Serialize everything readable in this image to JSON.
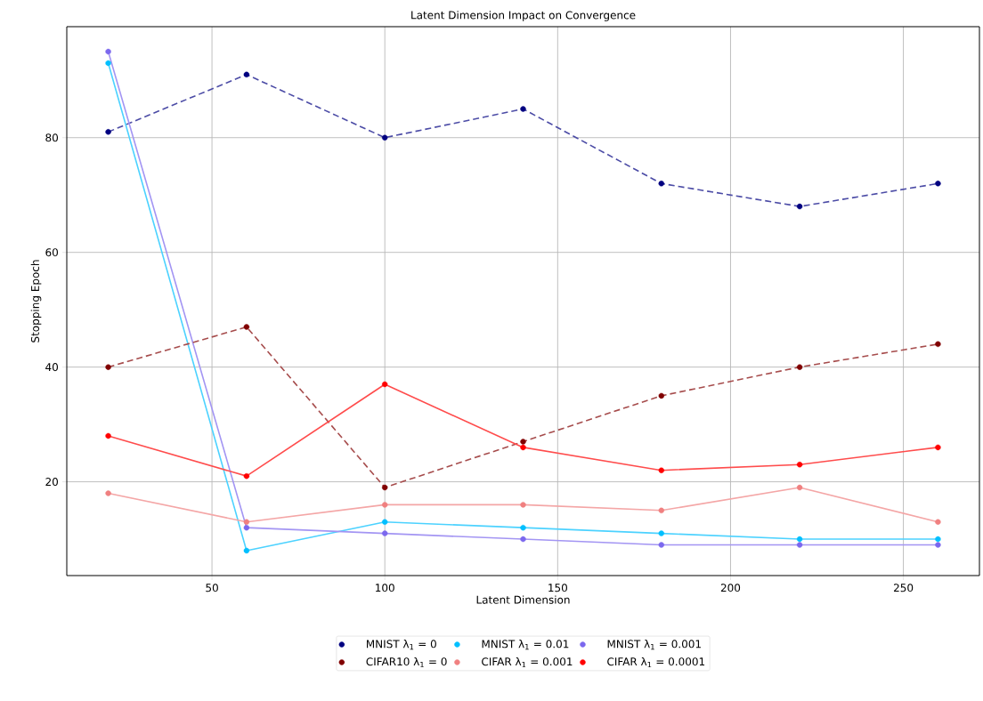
{
  "chart_data": {
    "type": "line",
    "title": "Latent Dimension Impact on Convergence",
    "xlabel": "Latent Dimension",
    "ylabel": "Stopping Epoch",
    "x": [
      20,
      60,
      100,
      140,
      180,
      220,
      260
    ],
    "series": [
      {
        "name": "MNIST λ$_{1}$ = 0",
        "color": "#000080",
        "line_style": "dashed",
        "values": [
          81,
          91,
          80,
          85,
          72,
          68,
          72
        ]
      },
      {
        "name": "MNIST λ$_{1}$ = 0.01",
        "color": "#00bfff",
        "line_style": "solid",
        "values": [
          93,
          8,
          13,
          12,
          11,
          10,
          10
        ]
      },
      {
        "name": "MNIST λ$_{1}$ = 0.001",
        "color": "#7b68ee",
        "line_style": "solid",
        "values": [
          95,
          12,
          11,
          10,
          9,
          9,
          9
        ]
      },
      {
        "name": "CIFAR10 λ$_{1}$ = 0",
        "color": "#800000",
        "line_style": "dashed",
        "values": [
          40,
          47,
          19,
          27,
          35,
          40,
          44
        ]
      },
      {
        "name": "CIFAR λ$_{1}$ = 0.001",
        "color": "#f08080",
        "line_style": "solid",
        "values": [
          18,
          13,
          16,
          16,
          15,
          19,
          13
        ]
      },
      {
        "name": "CIFAR λ$_{1}$ = 0.0001",
        "color": "#ff0000",
        "line_style": "solid",
        "values": [
          28,
          21,
          37,
          26,
          22,
          23,
          26
        ]
      }
    ],
    "xlim": [
      8,
      272
    ],
    "ylim": [
      3.65,
      99.35
    ],
    "xticks": [
      50,
      100,
      150,
      200,
      250
    ],
    "yticks": [
      20,
      40,
      60,
      80
    ],
    "grid": true,
    "legend": "bottom",
    "marker": "circle"
  }
}
